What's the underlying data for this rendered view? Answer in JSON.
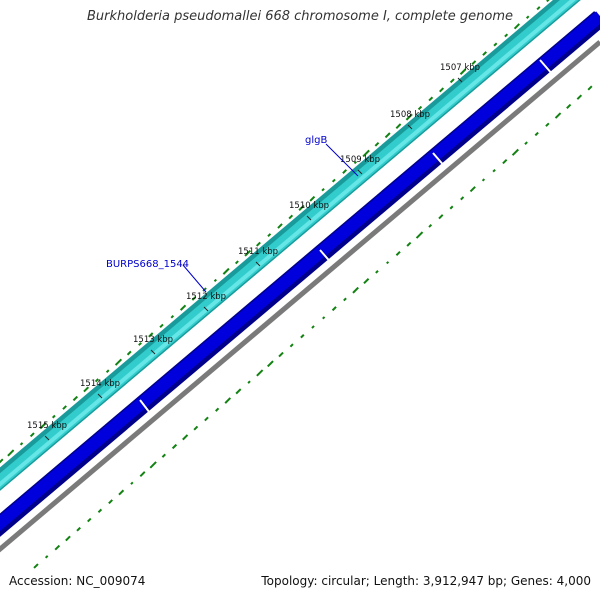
{
  "title": "Burkholderia pseudomallei 668 chromosome I, complete genome",
  "accession": "Accession: NC_009074",
  "summary": "Topology: circular; Length: 3,912,947 bp; Genes: 4,000",
  "colors": {
    "forward_track_dark": "#1a9b9b",
    "forward_track": "#33cccc",
    "forward_track_light": "#66e6e6",
    "reverse_track": "#0000dd",
    "reverse_track_dark": "#00008a",
    "backbone": "#7a7a7a",
    "gc_marks": "#128212",
    "gene_label": "#0000cc"
  },
  "tick_labels": [
    "1507 kbp",
    "1508 kbp",
    "1509 kbp",
    "1510 kbp",
    "1511 kbp",
    "1512 kbp",
    "1513 kbp",
    "1514 kbp",
    "1515 kbp"
  ],
  "gene_labels": [
    "glgB",
    "BURPS668_1544"
  ]
}
